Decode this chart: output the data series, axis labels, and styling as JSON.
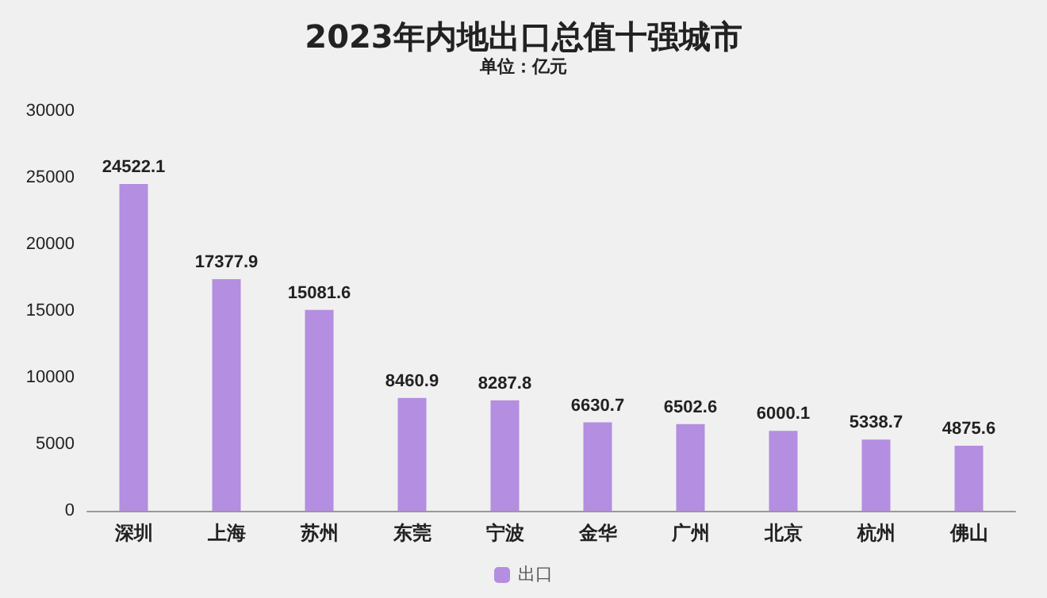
{
  "chart_data": {
    "type": "bar",
    "title": "2023年内地出口总值十强城市",
    "subtitle": "单位：亿元",
    "categories": [
      "深圳",
      "上海",
      "苏州",
      "东莞",
      "宁波",
      "金华",
      "广州",
      "北京",
      "杭州",
      "佛山"
    ],
    "series": [
      {
        "name": "出口",
        "color": "#b48ee0",
        "values": [
          24522.1,
          17377.9,
          15081.6,
          8460.9,
          8287.8,
          6630.7,
          6502.6,
          6000.1,
          5338.7,
          4875.6
        ]
      }
    ],
    "ylim": [
      0,
      30000
    ],
    "yticks": [
      0,
      5000,
      10000,
      15000,
      20000,
      25000,
      30000
    ],
    "data_labels": true,
    "legend": "bottom"
  }
}
